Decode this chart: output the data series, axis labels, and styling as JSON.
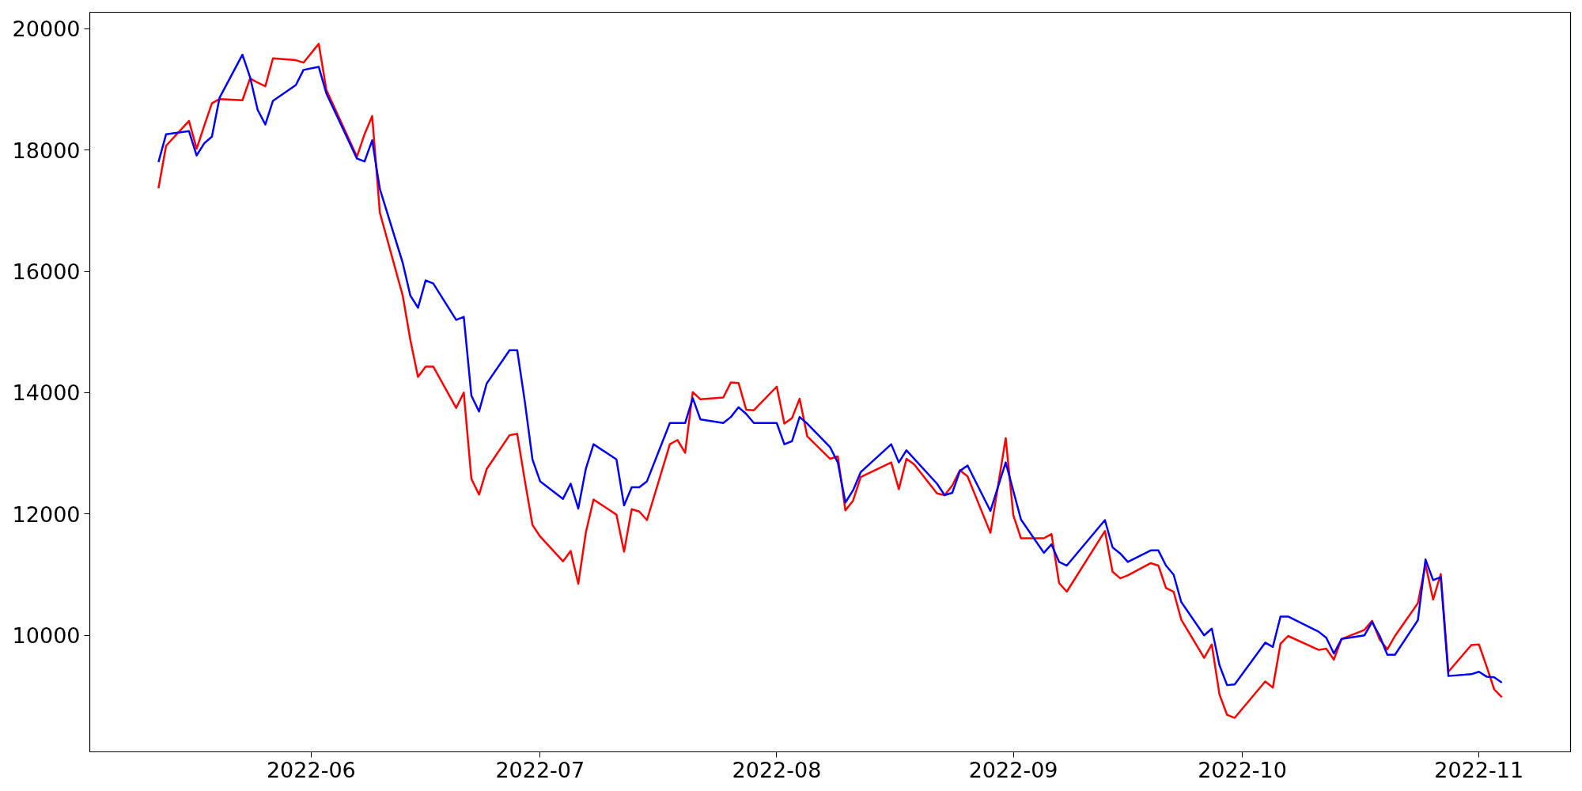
{
  "chart_data": {
    "type": "line",
    "xlim": [
      "2022-05-03",
      "2022-11-13"
    ],
    "ylim": [
      8080,
      20270
    ],
    "xticks": [
      {
        "value": "2022-06-01",
        "label": "2022-06"
      },
      {
        "value": "2022-07-01",
        "label": "2022-07"
      },
      {
        "value": "2022-08-01",
        "label": "2022-08"
      },
      {
        "value": "2022-09-01",
        "label": "2022-09"
      },
      {
        "value": "2022-10-01",
        "label": "2022-10"
      },
      {
        "value": "2022-11-01",
        "label": "2022-11"
      }
    ],
    "yticks": [
      10000,
      12000,
      14000,
      16000,
      18000,
      20000
    ],
    "line_style": "solid",
    "series": [
      {
        "color": "#ff0000",
        "x": [
          "2022-05-12",
          "2022-05-13",
          "2022-05-16",
          "2022-05-17",
          "2022-05-18",
          "2022-05-19",
          "2022-05-20",
          "2022-05-23",
          "2022-05-24",
          "2022-05-25",
          "2022-05-26",
          "2022-05-27",
          "2022-05-30",
          "2022-05-31",
          "2022-06-02",
          "2022-06-03",
          "2022-06-07",
          "2022-06-08",
          "2022-06-09",
          "2022-06-10",
          "2022-06-13",
          "2022-06-14",
          "2022-06-15",
          "2022-06-16",
          "2022-06-17",
          "2022-06-20",
          "2022-06-21",
          "2022-06-22",
          "2022-06-23",
          "2022-06-24",
          "2022-06-27",
          "2022-06-28",
          "2022-06-29",
          "2022-06-30",
          "2022-07-01",
          "2022-07-04",
          "2022-07-05",
          "2022-07-06",
          "2022-07-07",
          "2022-07-08",
          "2022-07-11",
          "2022-07-12",
          "2022-07-13",
          "2022-07-14",
          "2022-07-15",
          "2022-07-18",
          "2022-07-19",
          "2022-07-20",
          "2022-07-21",
          "2022-07-22",
          "2022-07-25",
          "2022-07-26",
          "2022-07-27",
          "2022-07-28",
          "2022-07-29",
          "2022-08-01",
          "2022-08-02",
          "2022-08-03",
          "2022-08-04",
          "2022-08-05",
          "2022-08-08",
          "2022-08-09",
          "2022-08-10",
          "2022-08-11",
          "2022-08-12",
          "2022-08-16",
          "2022-08-17",
          "2022-08-18",
          "2022-08-19",
          "2022-08-22",
          "2022-08-23",
          "2022-08-24",
          "2022-08-25",
          "2022-08-26",
          "2022-08-29",
          "2022-08-31",
          "2022-09-01",
          "2022-09-02",
          "2022-09-05",
          "2022-09-06",
          "2022-09-07",
          "2022-09-08",
          "2022-09-13",
          "2022-09-14",
          "2022-09-15",
          "2022-09-16",
          "2022-09-19",
          "2022-09-20",
          "2022-09-21",
          "2022-09-22",
          "2022-09-23",
          "2022-09-26",
          "2022-09-27",
          "2022-09-28",
          "2022-09-29",
          "2022-09-30",
          "2022-10-04",
          "2022-10-05",
          "2022-10-06",
          "2022-10-07",
          "2022-10-11",
          "2022-10-12",
          "2022-10-13",
          "2022-10-14",
          "2022-10-17",
          "2022-10-18",
          "2022-10-19",
          "2022-10-20",
          "2022-10-21",
          "2022-10-24",
          "2022-10-25",
          "2022-10-26",
          "2022-10-27",
          "2022-10-28",
          "2022-10-31",
          "2022-11-01",
          "2022-11-02",
          "2022-11-03",
          "2022-11-04"
        ],
        "values": [
          17370,
          18070,
          18480,
          18020,
          18400,
          18770,
          18840,
          18820,
          19180,
          19110,
          19050,
          19510,
          19480,
          19440,
          19750,
          18990,
          17890,
          18260,
          18560,
          16970,
          15600,
          14870,
          14260,
          14430,
          14430,
          13750,
          14000,
          12580,
          12320,
          12740,
          13300,
          13320,
          12550,
          11820,
          11630,
          11220,
          11390,
          10850,
          11700,
          12240,
          11990,
          11380,
          12080,
          12040,
          11900,
          13150,
          13220,
          13010,
          14010,
          13890,
          13920,
          14170,
          14160,
          13720,
          13710,
          14100,
          13490,
          13580,
          13900,
          13280,
          12910,
          12950,
          12060,
          12220,
          12610,
          12850,
          12410,
          12910,
          12820,
          12340,
          12310,
          12470,
          12720,
          12620,
          11690,
          13250,
          11980,
          11600,
          11600,
          11670,
          10860,
          10720,
          11720,
          11050,
          10940,
          10990,
          11190,
          11150,
          10780,
          10720,
          10260,
          9630,
          9850,
          9030,
          8690,
          8640,
          9240,
          9140,
          9860,
          9990,
          9760,
          9780,
          9600,
          9940,
          10090,
          10240,
          9930,
          9770,
          9990,
          10530,
          11170,
          10590,
          11010,
          9400,
          9840,
          9850,
          9490,
          9110,
          8980
        ]
      },
      {
        "color": "#0000ff",
        "x": [
          "2022-05-12",
          "2022-05-13",
          "2022-05-16",
          "2022-05-17",
          "2022-05-18",
          "2022-05-19",
          "2022-05-20",
          "2022-05-23",
          "2022-05-24",
          "2022-05-25",
          "2022-05-26",
          "2022-05-27",
          "2022-05-30",
          "2022-05-31",
          "2022-06-02",
          "2022-06-03",
          "2022-06-07",
          "2022-06-08",
          "2022-06-09",
          "2022-06-10",
          "2022-06-13",
          "2022-06-14",
          "2022-06-15",
          "2022-06-16",
          "2022-06-17",
          "2022-06-20",
          "2022-06-21",
          "2022-06-22",
          "2022-06-23",
          "2022-06-24",
          "2022-06-27",
          "2022-06-28",
          "2022-06-29",
          "2022-06-30",
          "2022-07-01",
          "2022-07-04",
          "2022-07-05",
          "2022-07-06",
          "2022-07-07",
          "2022-07-08",
          "2022-07-11",
          "2022-07-12",
          "2022-07-13",
          "2022-07-14",
          "2022-07-15",
          "2022-07-18",
          "2022-07-19",
          "2022-07-20",
          "2022-07-21",
          "2022-07-22",
          "2022-07-25",
          "2022-07-26",
          "2022-07-27",
          "2022-07-28",
          "2022-07-29",
          "2022-08-01",
          "2022-08-02",
          "2022-08-03",
          "2022-08-04",
          "2022-08-05",
          "2022-08-08",
          "2022-08-09",
          "2022-08-10",
          "2022-08-11",
          "2022-08-12",
          "2022-08-16",
          "2022-08-17",
          "2022-08-18",
          "2022-08-22",
          "2022-08-23",
          "2022-08-24",
          "2022-08-25",
          "2022-08-26",
          "2022-08-29",
          "2022-08-31",
          "2022-09-02",
          "2022-09-05",
          "2022-09-06",
          "2022-09-07",
          "2022-09-08",
          "2022-09-13",
          "2022-09-14",
          "2022-09-15",
          "2022-09-16",
          "2022-09-19",
          "2022-09-20",
          "2022-09-21",
          "2022-09-22",
          "2022-09-23",
          "2022-09-26",
          "2022-09-27",
          "2022-09-28",
          "2022-09-29",
          "2022-09-30",
          "2022-10-04",
          "2022-10-05",
          "2022-10-06",
          "2022-10-07",
          "2022-10-11",
          "2022-10-12",
          "2022-10-13",
          "2022-10-14",
          "2022-10-17",
          "2022-10-18",
          "2022-10-19",
          "2022-10-20",
          "2022-10-21",
          "2022-10-24",
          "2022-10-25",
          "2022-10-26",
          "2022-10-27",
          "2022-10-28",
          "2022-10-31",
          "2022-11-01",
          "2022-11-02",
          "2022-11-03",
          "2022-11-04"
        ],
        "values": [
          17800,
          18260,
          18310,
          17910,
          18110,
          18220,
          18860,
          19570,
          19200,
          18660,
          18420,
          18810,
          19070,
          19320,
          19370,
          18930,
          17860,
          17810,
          18160,
          17360,
          16140,
          15600,
          15400,
          15850,
          15800,
          15200,
          15250,
          13950,
          13690,
          14150,
          14700,
          14700,
          13850,
          12900,
          12540,
          12250,
          12500,
          12090,
          12750,
          13150,
          12900,
          12140,
          12440,
          12440,
          12540,
          13500,
          13500,
          13500,
          13910,
          13560,
          13500,
          13600,
          13760,
          13650,
          13500,
          13500,
          13150,
          13200,
          13600,
          13490,
          13100,
          12850,
          12190,
          12390,
          12690,
          13150,
          12850,
          13050,
          12500,
          12310,
          12350,
          12710,
          12800,
          12050,
          12850,
          11910,
          11360,
          11500,
          11210,
          11150,
          11900,
          11450,
          11350,
          11210,
          11400,
          11400,
          11150,
          11000,
          10550,
          10000,
          10110,
          9510,
          9180,
          9190,
          9880,
          9810,
          10310,
          10310,
          10060,
          9960,
          9700,
          9940,
          10000,
          10220,
          9990,
          9680,
          9680,
          10250,
          11250,
          10910,
          10960,
          9330,
          9360,
          9400,
          9320,
          9310,
          9220
        ]
      }
    ]
  }
}
